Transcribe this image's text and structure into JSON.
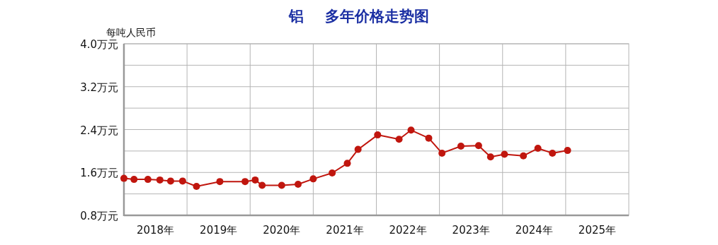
{
  "chart_data": {
    "type": "line",
    "title": "铝    多年价格走势图",
    "ylabel": "每吨人民币",
    "x": [
      2018.0,
      2018.16,
      2018.38,
      2018.57,
      2018.74,
      2018.93,
      2019.15,
      2019.52,
      2019.92,
      2020.08,
      2020.19,
      2020.5,
      2020.76,
      2021.0,
      2021.3,
      2021.54,
      2021.71,
      2022.02,
      2022.36,
      2022.55,
      2022.83,
      2023.04,
      2023.34,
      2023.62,
      2023.81,
      2024.03,
      2024.33,
      2024.56,
      2024.79,
      2025.03
    ],
    "series": [
      {
        "color": "#c0160e",
        "values": [
          1.49,
          1.47,
          1.47,
          1.46,
          1.44,
          1.44,
          1.34,
          1.43,
          1.43,
          1.46,
          1.36,
          1.36,
          1.38,
          1.48,
          1.59,
          1.77,
          2.03,
          2.3,
          2.22,
          2.39,
          2.24,
          1.96,
          2.09,
          2.1,
          1.89,
          1.94,
          1.91,
          2.05,
          1.96,
          2.01
        ]
      }
    ],
    "xlim": [
      2018,
      2026
    ],
    "xticks": [
      {
        "value": 2018.5,
        "label": "2018年"
      },
      {
        "value": 2019,
        "label": null
      },
      {
        "value": 2019.5,
        "label": "2019年"
      },
      {
        "value": 2020,
        "label": null
      },
      {
        "value": 2020.5,
        "label": "2020年"
      },
      {
        "value": 2021,
        "label": null
      },
      {
        "value": 2021.5,
        "label": "2021年"
      },
      {
        "value": 2022,
        "label": null
      },
      {
        "value": 2022.5,
        "label": "2022年"
      },
      {
        "value": 2023,
        "label": null
      },
      {
        "value": 2023.5,
        "label": "2023年"
      },
      {
        "value": 2024,
        "label": null
      },
      {
        "value": 2024.5,
        "label": "2024年"
      },
      {
        "value": 2025,
        "label": null
      },
      {
        "value": 2025.5,
        "label": "2025年"
      }
    ],
    "ylim": [
      0.8,
      4.0
    ],
    "yticks": [
      {
        "value": 0.8,
        "label": "0.8万元"
      },
      {
        "value": 1.2,
        "label": null
      },
      {
        "value": 1.6,
        "label": "1.6万元"
      },
      {
        "value": 2.0,
        "label": null
      },
      {
        "value": 2.4,
        "label": "2.4万元"
      },
      {
        "value": 2.8,
        "label": null
      },
      {
        "value": 3.2,
        "label": "3.2万元"
      },
      {
        "value": 3.6,
        "label": null
      },
      {
        "value": 4.0,
        "label": "4.0万元"
      }
    ],
    "grid": true,
    "marker": "circle",
    "line_style": "solid"
  }
}
